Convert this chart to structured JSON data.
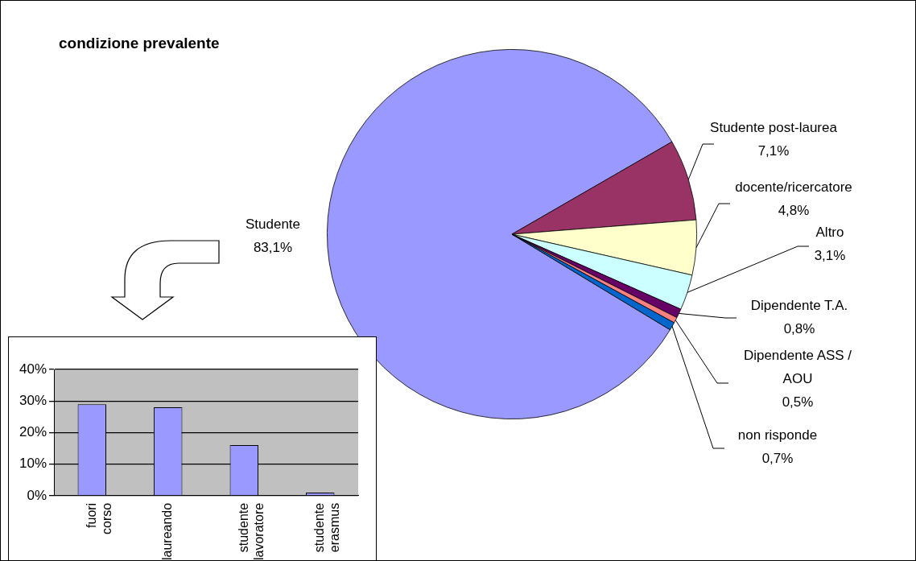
{
  "chart_data": [
    {
      "type": "pie",
      "title": "condizione prevalente",
      "categories": [
        "Studente",
        "Studente post-laurea",
        "docente/ricercatore",
        "Altro",
        "Dipendente T.A.",
        "Dipendente ASS / AOU",
        "non risponde"
      ],
      "values": [
        83.1,
        7.1,
        4.8,
        3.1,
        0.8,
        0.5,
        0.7
      ],
      "value_labels": [
        "83,1%",
        "7,1%",
        "4,8%",
        "3,1%",
        "0,8%",
        "0,5%",
        "0,7%"
      ],
      "colors": [
        "#9999ff",
        "#993366",
        "#ffffcc",
        "#ccffff",
        "#660066",
        "#ff8080",
        "#0066cc"
      ],
      "legend": false
    },
    {
      "type": "bar",
      "categories": [
        "fuori corso",
        "laureando",
        "studente lavoratore",
        "studente erasmus"
      ],
      "values": [
        29,
        28,
        16,
        1
      ],
      "color": "#9999ff",
      "ylim": [
        0,
        40
      ],
      "yticks": [
        {
          "value": 0,
          "label": "0%"
        },
        {
          "value": 10,
          "label": "10%"
        },
        {
          "value": 20,
          "label": "20%"
        },
        {
          "value": 30,
          "label": "30%"
        },
        {
          "value": 40,
          "label": "40%"
        }
      ],
      "grid": "y",
      "legend": false
    }
  ]
}
